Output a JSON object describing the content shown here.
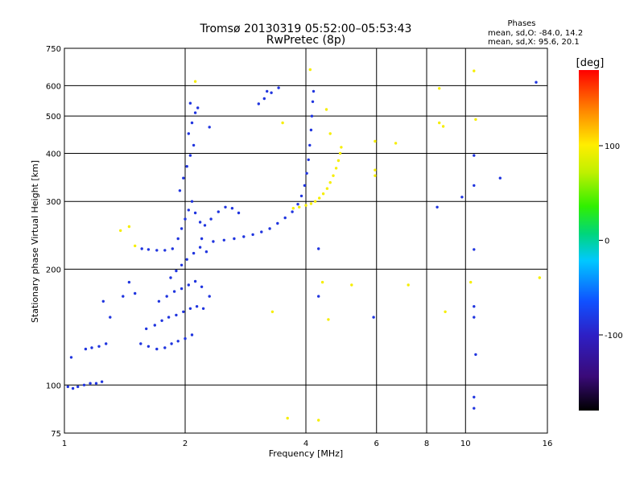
{
  "chart_data": {
    "type": "scatter",
    "title": "Tromsø 20130319 05:52:00–05:53:43",
    "subtitle": "RwPretec (8p)",
    "xlabel": "Frequency [MHz]",
    "ylabel": "Stationary phase Virtual Height [km]",
    "x_scale": "log",
    "y_scale": "log",
    "xlim": [
      1,
      16
    ],
    "ylim": [
      75,
      750
    ],
    "grid": true,
    "x_ticks": [
      1,
      2,
      4,
      6,
      8,
      10,
      16
    ],
    "x_tick_labels": [
      "1",
      "2",
      "4",
      "6",
      "8",
      "10",
      "16"
    ],
    "y_ticks": [
      75,
      100,
      200,
      300,
      400,
      500,
      600,
      750
    ],
    "y_tick_labels": [
      "75",
      "100",
      "200",
      "300",
      "400",
      "500",
      "600",
      "750"
    ],
    "stats": {
      "heading": "Phases",
      "line1": "mean, sd,O: -84.0, 14.2",
      "line2": "mean, sd,X:  95.6, 20.1"
    },
    "colorbar": {
      "label": "[deg]",
      "range": [
        -180,
        180
      ],
      "ticks": [
        100,
        0,
        -100
      ],
      "tick_labels": [
        "100",
        "0",
        "-100"
      ]
    },
    "series": [
      {
        "mode": "O",
        "phase_deg": -84,
        "points": [
          [
            1.02,
            99
          ],
          [
            1.05,
            98
          ],
          [
            1.08,
            99
          ],
          [
            1.12,
            100
          ],
          [
            1.16,
            101
          ],
          [
            1.2,
            101
          ],
          [
            1.24,
            102
          ],
          [
            1.04,
            118
          ],
          [
            1.13,
            124
          ],
          [
            1.17,
            125
          ],
          [
            1.22,
            126
          ],
          [
            1.27,
            128
          ],
          [
            1.55,
            128
          ],
          [
            1.62,
            126
          ],
          [
            1.7,
            124
          ],
          [
            1.78,
            125
          ],
          [
            1.85,
            128
          ],
          [
            1.92,
            130
          ],
          [
            2.0,
            132
          ],
          [
            2.08,
            135
          ],
          [
            1.6,
            140
          ],
          [
            1.68,
            143
          ],
          [
            1.75,
            147
          ],
          [
            1.82,
            150
          ],
          [
            1.9,
            152
          ],
          [
            1.98,
            155
          ],
          [
            2.06,
            158
          ],
          [
            2.14,
            160
          ],
          [
            2.22,
            158
          ],
          [
            1.72,
            165
          ],
          [
            1.8,
            170
          ],
          [
            1.88,
            175
          ],
          [
            1.96,
            178
          ],
          [
            2.04,
            182
          ],
          [
            2.12,
            186
          ],
          [
            2.2,
            180
          ],
          [
            2.3,
            170
          ],
          [
            1.84,
            190
          ],
          [
            1.9,
            198
          ],
          [
            1.96,
            205
          ],
          [
            2.02,
            212
          ],
          [
            2.1,
            220
          ],
          [
            2.18,
            228
          ],
          [
            2.26,
            222
          ],
          [
            1.56,
            226
          ],
          [
            1.62,
            225
          ],
          [
            1.7,
            224
          ],
          [
            1.78,
            224
          ],
          [
            1.86,
            226
          ],
          [
            1.92,
            240
          ],
          [
            1.96,
            255
          ],
          [
            2.0,
            270
          ],
          [
            2.04,
            285
          ],
          [
            2.08,
            300
          ],
          [
            2.12,
            280
          ],
          [
            2.18,
            265
          ],
          [
            2.24,
            260
          ],
          [
            2.32,
            270
          ],
          [
            2.42,
            282
          ],
          [
            2.52,
            290
          ],
          [
            2.62,
            288
          ],
          [
            2.72,
            280
          ],
          [
            1.94,
            320
          ],
          [
            1.98,
            345
          ],
          [
            2.02,
            370
          ],
          [
            2.06,
            395
          ],
          [
            2.1,
            420
          ],
          [
            2.04,
            450
          ],
          [
            2.08,
            480
          ],
          [
            2.12,
            510
          ],
          [
            2.06,
            540
          ],
          [
            2.2,
            240
          ],
          [
            2.35,
            236
          ],
          [
            2.5,
            238
          ],
          [
            2.65,
            240
          ],
          [
            2.8,
            243
          ],
          [
            2.95,
            246
          ],
          [
            3.1,
            250
          ],
          [
            3.25,
            255
          ],
          [
            3.4,
            263
          ],
          [
            3.55,
            272
          ],
          [
            3.7,
            282
          ],
          [
            3.82,
            295
          ],
          [
            3.9,
            310
          ],
          [
            3.97,
            330
          ],
          [
            4.02,
            355
          ],
          [
            4.06,
            385
          ],
          [
            4.09,
            420
          ],
          [
            4.12,
            460
          ],
          [
            4.14,
            500
          ],
          [
            4.16,
            545
          ],
          [
            4.18,
            580
          ],
          [
            3.05,
            538
          ],
          [
            3.15,
            555
          ],
          [
            3.28,
            575
          ],
          [
            3.42,
            592
          ],
          [
            1.3,
            150
          ],
          [
            1.4,
            170
          ],
          [
            1.45,
            185
          ],
          [
            1.25,
            165
          ],
          [
            10.5,
            93
          ],
          [
            10.5,
            87
          ],
          [
            10.5,
            225
          ],
          [
            10.5,
            395
          ],
          [
            10.5,
            150
          ],
          [
            10.5,
            160
          ],
          [
            10.6,
            120
          ],
          [
            12.2,
            345
          ],
          [
            8.5,
            290
          ],
          [
            10.5,
            330
          ],
          [
            15.0,
            612
          ],
          [
            9.8,
            308
          ],
          [
            4.3,
            170
          ],
          [
            4.3,
            226
          ],
          [
            5.9,
            150
          ],
          [
            3.2,
            580
          ],
          [
            2.15,
            525
          ],
          [
            2.3,
            468
          ],
          [
            1.5,
            173
          ]
        ]
      },
      {
        "mode": "X",
        "phase_deg": 96,
        "points": [
          [
            3.72,
            288
          ],
          [
            3.85,
            290
          ],
          [
            4.0,
            293
          ],
          [
            4.12,
            296
          ],
          [
            4.22,
            300
          ],
          [
            4.32,
            306
          ],
          [
            4.42,
            314
          ],
          [
            4.52,
            324
          ],
          [
            4.6,
            336
          ],
          [
            4.68,
            350
          ],
          [
            4.76,
            366
          ],
          [
            4.82,
            383
          ],
          [
            4.87,
            400
          ],
          [
            4.9,
            415
          ],
          [
            4.1,
            660
          ],
          [
            2.12,
            615
          ],
          [
            4.5,
            520
          ],
          [
            4.6,
            450
          ],
          [
            5.95,
            430
          ],
          [
            6.7,
            425
          ],
          [
            5.95,
            362
          ],
          [
            5.95,
            350
          ],
          [
            8.6,
            590
          ],
          [
            8.6,
            480
          ],
          [
            8.8,
            470
          ],
          [
            10.5,
            655
          ],
          [
            10.6,
            490
          ],
          [
            3.3,
            155
          ],
          [
            3.5,
            480
          ],
          [
            5.2,
            182
          ],
          [
            7.2,
            182
          ],
          [
            8.9,
            155
          ],
          [
            10.3,
            185
          ],
          [
            15.3,
            190
          ],
          [
            1.45,
            258
          ],
          [
            1.5,
            230
          ],
          [
            1.38,
            252
          ],
          [
            3.6,
            82
          ],
          [
            4.3,
            81
          ],
          [
            4.4,
            185
          ],
          [
            4.55,
            148
          ]
        ]
      }
    ]
  }
}
